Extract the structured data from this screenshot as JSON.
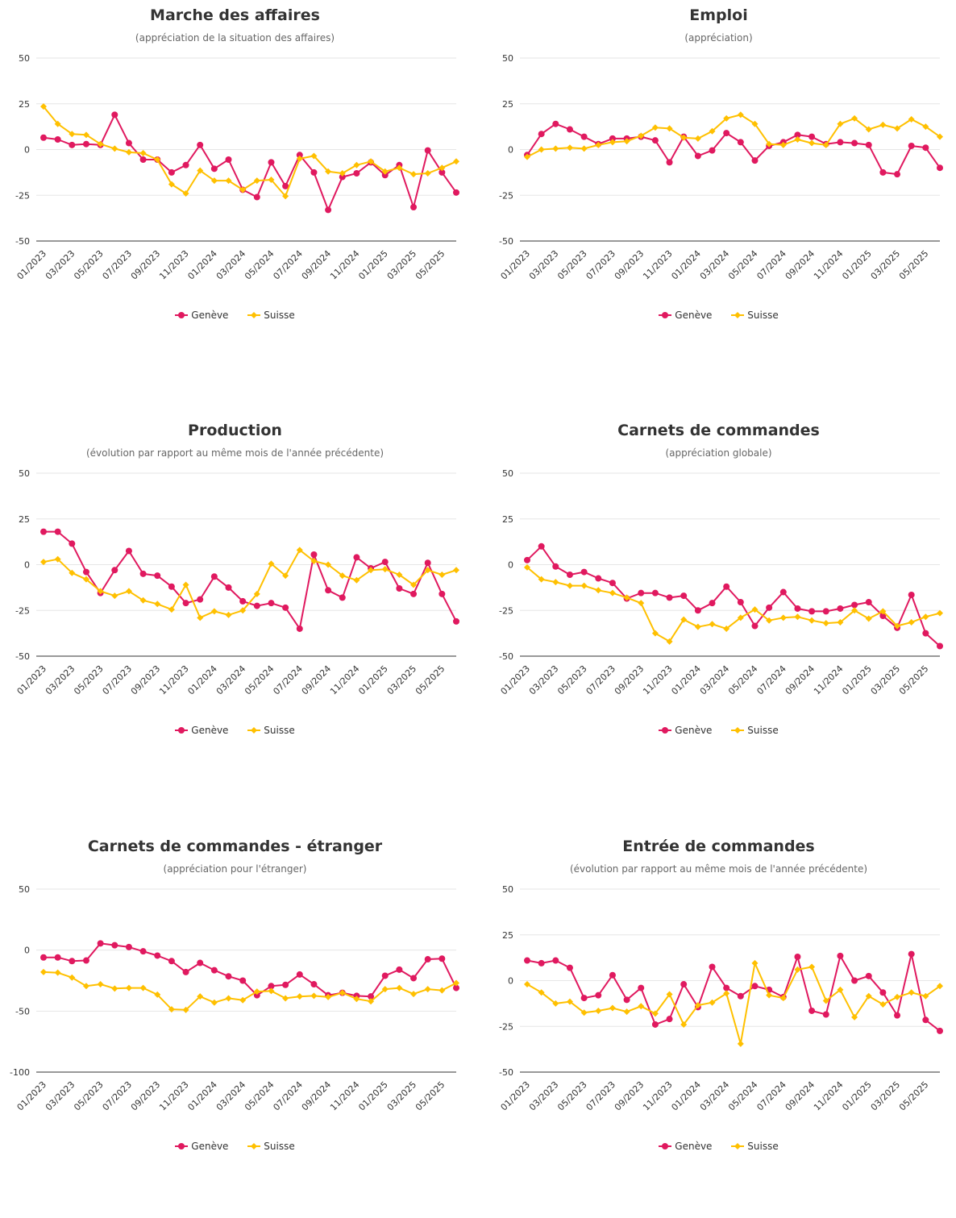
{
  "legend": {
    "series_a": "Genève",
    "series_b": "Suisse"
  },
  "colors": {
    "series_a": "#e0195f",
    "series_b": "#ffc000",
    "grid": "#e6e6e6",
    "axis": "#333333"
  },
  "chart_data": [
    {
      "type": "line",
      "title": "Marche des affaires",
      "subtitle": "(appréciation de la situation des affaires)",
      "ylim": [
        -50,
        50
      ],
      "yticks": [
        50,
        25,
        0,
        -25,
        -50
      ],
      "x_tick_labels": [
        "01/2023",
        "03/2023",
        "05/2023",
        "07/2023",
        "09/2023",
        "11/2023",
        "01/2024",
        "03/2024",
        "05/2024",
        "07/2024",
        "09/2024",
        "11/2024",
        "01/2025",
        "03/2025",
        "05/2025"
      ],
      "x": [
        "01/2023",
        "02/2023",
        "03/2023",
        "04/2023",
        "05/2023",
        "06/2023",
        "07/2023",
        "08/2023",
        "09/2023",
        "10/2023",
        "11/2023",
        "12/2023",
        "01/2024",
        "02/2024",
        "03/2024",
        "04/2024",
        "05/2024",
        "06/2024",
        "07/2024",
        "08/2024",
        "09/2024",
        "10/2024",
        "11/2024",
        "12/2024",
        "01/2025",
        "02/2025",
        "03/2025",
        "04/2025",
        "05/2025",
        "06/2025"
      ],
      "series": [
        {
          "name": "Genève",
          "values": [
            6.5,
            5.5,
            2.5,
            3,
            2.5,
            19,
            3.5,
            -5.5,
            -5.5,
            -12.5,
            -8.5,
            2.5,
            -10.5,
            -5.5,
            -22,
            -26,
            -7,
            -20,
            -3,
            -12.5,
            -33,
            -15,
            -13,
            -7,
            -14,
            -8.5,
            -31.5,
            -0.5,
            -12.5,
            -23.5
          ]
        },
        {
          "name": "Suisse",
          "values": [
            23.5,
            14,
            8.5,
            8,
            3,
            0.5,
            -1.5,
            -2,
            -5.5,
            -19,
            -24,
            -11.5,
            -17,
            -17,
            -22,
            -17,
            -16.5,
            -25.5,
            -5,
            -3.5,
            -12,
            -13,
            -8.5,
            -6.5,
            -12,
            -10,
            -13.5,
            -13,
            -10,
            -6.5
          ]
        }
      ]
    },
    {
      "type": "line",
      "title": "Emploi",
      "subtitle": "(appréciation)",
      "ylim": [
        -50,
        50
      ],
      "yticks": [
        50,
        25,
        0,
        -25,
        -50
      ],
      "x_tick_labels": [
        "01/2023",
        "03/2023",
        "05/2023",
        "07/2023",
        "09/2023",
        "11/2023",
        "01/2024",
        "03/2024",
        "05/2024",
        "07/2024",
        "09/2024",
        "11/2024",
        "01/2025",
        "03/2025",
        "05/2025"
      ],
      "x": [
        "01/2023",
        "02/2023",
        "03/2023",
        "04/2023",
        "05/2023",
        "06/2023",
        "07/2023",
        "08/2023",
        "09/2023",
        "10/2023",
        "11/2023",
        "12/2023",
        "01/2024",
        "02/2024",
        "03/2024",
        "04/2024",
        "05/2024",
        "06/2024",
        "07/2024",
        "08/2024",
        "09/2024",
        "10/2024",
        "11/2024",
        "12/2024",
        "01/2025",
        "02/2025",
        "03/2025",
        "04/2025",
        "05/2025",
        "06/2025"
      ],
      "series": [
        {
          "name": "Genève",
          "values": [
            -3,
            8.5,
            14,
            11,
            7,
            3,
            6,
            6,
            7,
            5,
            -7,
            7,
            -3.5,
            -0.5,
            9,
            4,
            -6,
            2,
            4,
            8,
            7,
            3,
            4,
            3.5,
            2.5,
            -12.5,
            -13.5,
            2,
            1,
            -10
          ]
        },
        {
          "name": "Suisse",
          "values": [
            -4,
            0,
            0.5,
            1,
            0.5,
            2.5,
            4,
            4.5,
            7.5,
            12,
            11.5,
            6.5,
            6,
            10,
            17,
            19,
            14,
            3,
            2.5,
            5.5,
            3.5,
            2.5,
            14,
            17,
            11,
            13.5,
            11.5,
            16.5,
            12.5,
            7
          ]
        }
      ]
    },
    {
      "type": "line",
      "title": "Production",
      "subtitle": "(évolution par rapport au même mois de l'année précédente)",
      "ylim": [
        -50,
        50
      ],
      "yticks": [
        50,
        25,
        0,
        -25,
        -50
      ],
      "x_tick_labels": [
        "01/2023",
        "03/2023",
        "05/2023",
        "07/2023",
        "09/2023",
        "11/2023",
        "01/2024",
        "03/2024",
        "05/2024",
        "07/2024",
        "09/2024",
        "11/2024",
        "01/2025",
        "03/2025",
        "05/2025"
      ],
      "x": [
        "01/2023",
        "02/2023",
        "03/2023",
        "04/2023",
        "05/2023",
        "06/2023",
        "07/2023",
        "08/2023",
        "09/2023",
        "10/2023",
        "11/2023",
        "12/2023",
        "01/2024",
        "02/2024",
        "03/2024",
        "04/2024",
        "05/2024",
        "06/2024",
        "07/2024",
        "08/2024",
        "09/2024",
        "10/2024",
        "11/2024",
        "12/2024",
        "01/2025",
        "02/2025",
        "03/2025",
        "04/2025",
        "05/2025",
        "06/2025"
      ],
      "series": [
        {
          "name": "Genève",
          "values": [
            18,
            18,
            11.5,
            -4,
            -15.5,
            -3,
            7.5,
            -5,
            -6,
            -12,
            -21,
            -19,
            -6.5,
            -12.5,
            -20,
            -22.5,
            -21,
            -23.5,
            -35,
            5.5,
            -14,
            -18,
            4,
            -2,
            1.5,
            -13,
            -16,
            1,
            -16,
            -31
          ]
        },
        {
          "name": "Suisse",
          "values": [
            1.5,
            3,
            -4.5,
            -8,
            -14.5,
            -17,
            -14.5,
            -19.5,
            -21.5,
            -24.5,
            -11,
            -29,
            -25.5,
            -27.5,
            -25,
            -16,
            0.5,
            -6,
            8,
            2,
            0,
            -6,
            -8.5,
            -3,
            -2.5,
            -5.5,
            -11,
            -3,
            -5.5,
            -3
          ]
        }
      ]
    },
    {
      "type": "line",
      "title": "Carnets de commandes",
      "subtitle": "(appréciation globale)",
      "ylim": [
        -50,
        50
      ],
      "yticks": [
        50,
        25,
        0,
        -25,
        -50
      ],
      "x_tick_labels": [
        "01/2023",
        "03/2023",
        "05/2023",
        "07/2023",
        "09/2023",
        "11/2023",
        "01/2024",
        "03/2024",
        "05/2024",
        "07/2024",
        "09/2024",
        "11/2024",
        "01/2025",
        "03/2025",
        "05/2025"
      ],
      "x": [
        "01/2023",
        "02/2023",
        "03/2023",
        "04/2023",
        "05/2023",
        "06/2023",
        "07/2023",
        "08/2023",
        "09/2023",
        "10/2023",
        "11/2023",
        "12/2023",
        "01/2024",
        "02/2024",
        "03/2024",
        "04/2024",
        "05/2024",
        "06/2024",
        "07/2024",
        "08/2024",
        "09/2024",
        "10/2024",
        "11/2024",
        "12/2024",
        "01/2025",
        "02/2025",
        "03/2025",
        "04/2025",
        "05/2025",
        "06/2025"
      ],
      "series": [
        {
          "name": "Genève",
          "values": [
            2.5,
            10,
            -1,
            -5.5,
            -4,
            -7.5,
            -10,
            -18.5,
            -15.5,
            -15.5,
            -18,
            -17,
            -25,
            -21,
            -12,
            -20.5,
            -33.5,
            -23.5,
            -15,
            -24,
            -25.5,
            -25.5,
            -24,
            -22,
            -20.5,
            -28,
            -34.5,
            -16.5,
            -37.5,
            -44.5
          ]
        },
        {
          "name": "Suisse",
          "values": [
            -1.5,
            -8,
            -9.5,
            -11.5,
            -11.5,
            -14,
            -15.5,
            -18,
            -21,
            -37.5,
            -42,
            -30,
            -34,
            -32.5,
            -35,
            -29,
            -24.5,
            -30.5,
            -29,
            -28.5,
            -30.5,
            -32,
            -31.5,
            -25,
            -29.5,
            -25.5,
            -33.5,
            -31.5,
            -28.5,
            -26.5
          ]
        }
      ]
    },
    {
      "type": "line",
      "title": "Carnets de commandes - étranger",
      "subtitle": "(appréciation pour l'étranger)",
      "ylim": [
        -100,
        50
      ],
      "yticks": [
        50,
        0,
        -50,
        -100
      ],
      "x_tick_labels": [
        "01/2023",
        "03/2023",
        "05/2023",
        "07/2023",
        "09/2023",
        "11/2023",
        "01/2024",
        "03/2024",
        "05/2024",
        "07/2024",
        "09/2024",
        "11/2024",
        "01/2025",
        "03/2025",
        "05/2025"
      ],
      "x": [
        "01/2023",
        "02/2023",
        "03/2023",
        "04/2023",
        "05/2023",
        "06/2023",
        "07/2023",
        "08/2023",
        "09/2023",
        "10/2023",
        "11/2023",
        "12/2023",
        "01/2024",
        "02/2024",
        "03/2024",
        "04/2024",
        "05/2024",
        "06/2024",
        "07/2024",
        "08/2024",
        "09/2024",
        "10/2024",
        "11/2024",
        "12/2024",
        "01/2025",
        "02/2025",
        "03/2025",
        "04/2025",
        "05/2025",
        "06/2025"
      ],
      "series": [
        {
          "name": "Genève",
          "values": [
            -6,
            -6,
            -9,
            -8.5,
            5.5,
            4,
            2.5,
            -1,
            -4.5,
            -9,
            -18,
            -10.5,
            -16.5,
            -21.5,
            -25,
            -37,
            -29.5,
            -28.5,
            -20,
            -28,
            -37,
            -35,
            -37.5,
            -38,
            -21,
            -16,
            -23,
            -7.5,
            -7,
            -31
          ]
        },
        {
          "name": "Suisse",
          "values": [
            -18,
            -18.5,
            -22.5,
            -29.5,
            -28,
            -31.5,
            -31,
            -31,
            -36.5,
            -48.5,
            -49,
            -38,
            -43,
            -39.5,
            -41,
            -34,
            -33.5,
            -39.5,
            -38,
            -37.5,
            -38.5,
            -35,
            -40,
            -42,
            -32,
            -31,
            -36,
            -32,
            -33,
            -27
          ]
        }
      ]
    },
    {
      "type": "line",
      "title": "Entrée de commandes",
      "subtitle": "(évolution par rapport au même mois de l'année précédente)",
      "ylim": [
        -50,
        50
      ],
      "yticks": [
        50,
        25,
        0,
        -25,
        -50
      ],
      "x_tick_labels": [
        "01/2023",
        "03/2023",
        "05/2023",
        "07/2023",
        "09/2023",
        "11/2023",
        "01/2024",
        "03/2024",
        "05/2024",
        "07/2024",
        "09/2024",
        "11/2024",
        "01/2025",
        "03/2025",
        "05/2025"
      ],
      "x": [
        "01/2023",
        "02/2023",
        "03/2023",
        "04/2023",
        "05/2023",
        "06/2023",
        "07/2023",
        "08/2023",
        "09/2023",
        "10/2023",
        "11/2023",
        "12/2023",
        "01/2024",
        "02/2024",
        "03/2024",
        "04/2024",
        "05/2024",
        "06/2024",
        "07/2024",
        "08/2024",
        "09/2024",
        "10/2024",
        "11/2024",
        "12/2024",
        "01/2025",
        "02/2025",
        "03/2025",
        "04/2025",
        "05/2025",
        "06/2025"
      ],
      "series": [
        {
          "name": "Genève",
          "values": [
            11,
            9.5,
            11,
            7,
            -9.5,
            -8,
            3,
            -10.5,
            -4,
            -24,
            -21,
            -2,
            -14.5,
            7.5,
            -4,
            -8.5,
            -3,
            -5,
            -9,
            13,
            -16.5,
            -18.5,
            13.5,
            0,
            2.5,
            -6.5,
            -19,
            14.5,
            -21.5,
            -27.5
          ]
        },
        {
          "name": "Suisse",
          "values": [
            -2,
            -6.5,
            -12.5,
            -11.5,
            -17.5,
            -16.5,
            -15,
            -17,
            -14,
            -18,
            -7.5,
            -24,
            -13.5,
            -12,
            -7,
            -34.5,
            9.5,
            -8,
            -9.5,
            6,
            7.5,
            -11,
            -5,
            -20,
            -8.5,
            -13,
            -9,
            -6.5,
            -8.5,
            -3
          ]
        }
      ]
    }
  ]
}
